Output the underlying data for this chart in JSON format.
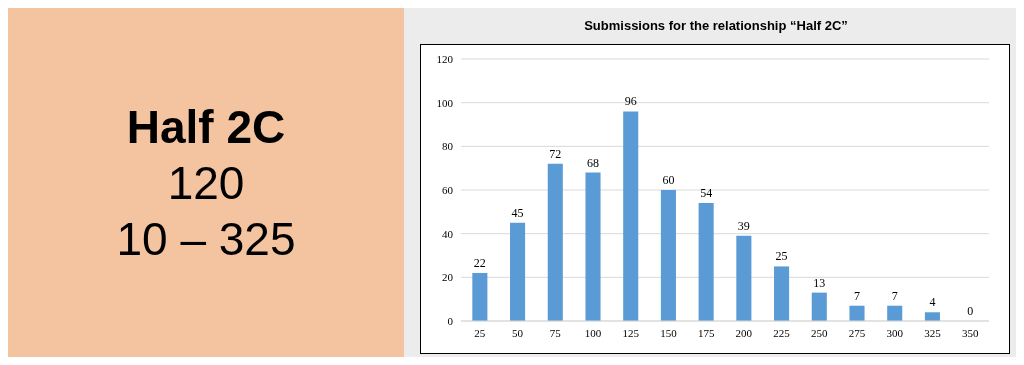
{
  "chart_data": [
    {
      "type": "other",
      "title": "Half 2C",
      "annotations": [
        "120",
        "10 – 325"
      ],
      "color": "#f4c4a0"
    },
    {
      "type": "bar",
      "title": "Submissions for the relationship “Half 2C”",
      "categories": [
        "25",
        "50",
        "75",
        "100",
        "125",
        "150",
        "175",
        "200",
        "225",
        "250",
        "275",
        "300",
        "325",
        "350"
      ],
      "values": [
        22,
        45,
        72,
        68,
        96,
        60,
        54,
        39,
        25,
        13,
        7,
        7,
        4,
        0
      ],
      "color": "#5b9bd5",
      "ylim": [
        0,
        120
      ],
      "yticks": [
        0,
        20,
        40,
        60,
        80,
        100,
        120
      ],
      "grid": "y",
      "data_labels": true
    }
  ]
}
